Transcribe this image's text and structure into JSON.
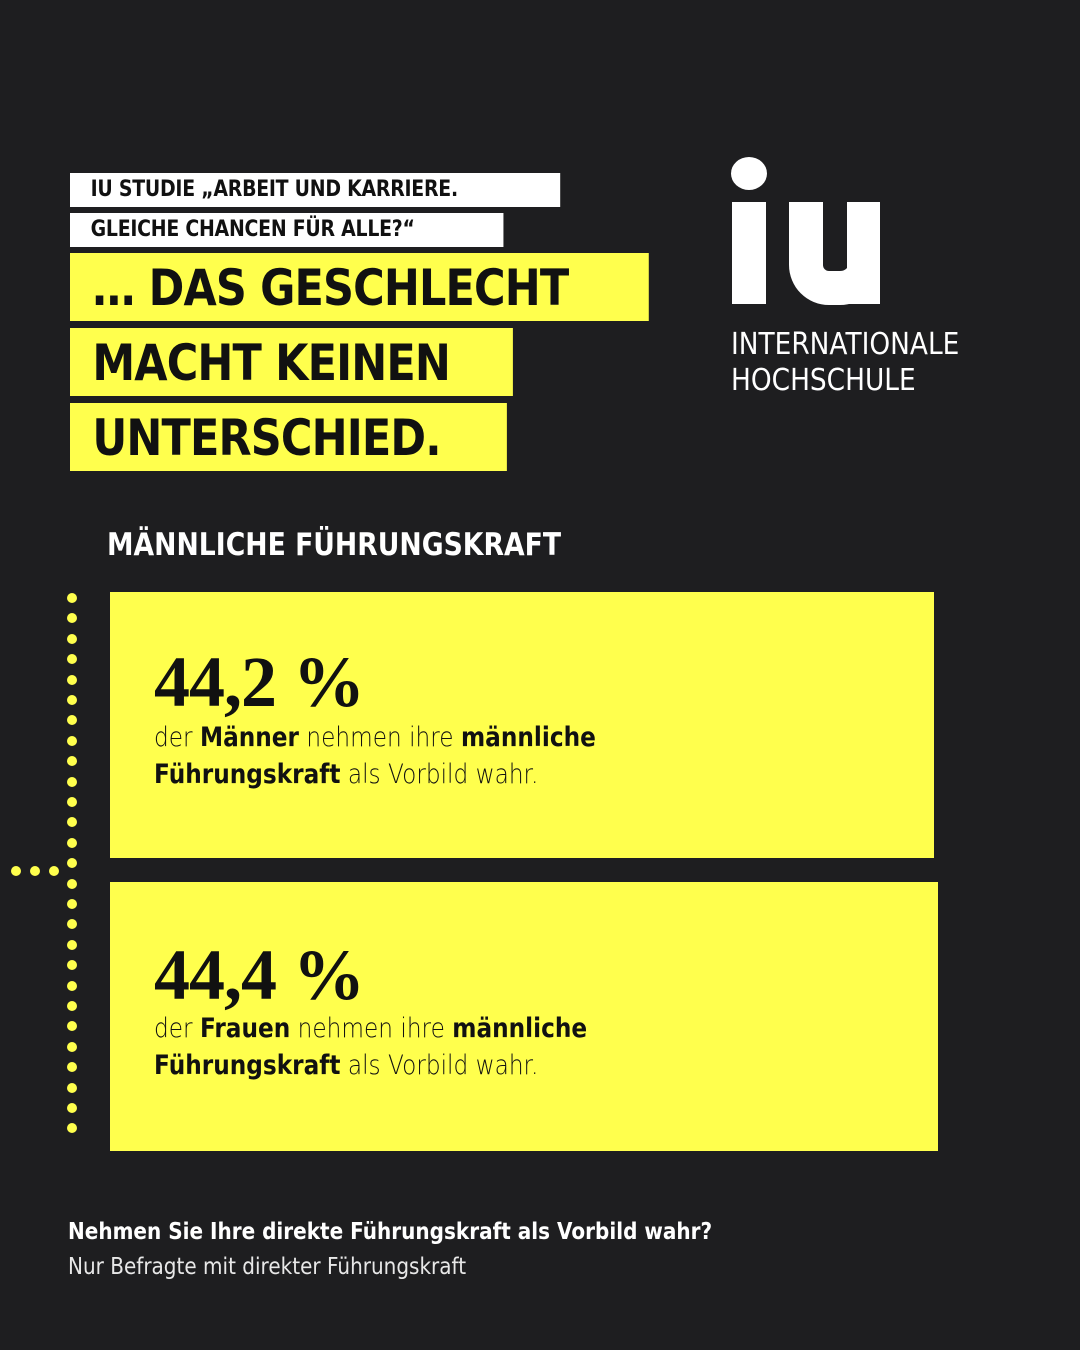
{
  "header": {
    "study_lines": [
      "IU STUDIE „ARBEIT UND KARRIERE.",
      "GLEICHE CHANCEN FÜR ALLE?“"
    ],
    "headline_lines": [
      "… DAS GESCHLECHT",
      "MACHT KEINEN",
      "UNTERSCHIED."
    ]
  },
  "logo": {
    "mark": "iu",
    "name_lines": [
      "INTERNATIONALE",
      "HOCHSCHULE"
    ]
  },
  "section": {
    "title": "MÄNNLICHE FÜHRUNGSKRAFT"
  },
  "stats": [
    {
      "value": "44,2 %",
      "desc": {
        "p1": "der ",
        "b1": "Männer",
        "p2": " nehmen ihre ",
        "b2": "männliche",
        "b3": "Führungskraft",
        "p3": " als Vorbild wahr."
      }
    },
    {
      "value": "44,4 %",
      "desc": {
        "p1": "der ",
        "b1": "Frauen",
        "p2": " nehmen ihre ",
        "b2": "männliche",
        "b3": "Führungskraft",
        "p3": " als Vorbild wahr."
      }
    }
  ],
  "footer": {
    "question": "Nehmen Sie Ihre direkte Führungskraft als Vorbild wahr?",
    "note": "Nur Befragte mit direkter Führungskraft"
  },
  "colors": {
    "background": "#1e1e20",
    "accent_yellow": "#ffff4d",
    "text_dark": "#111111",
    "text_light": "#ffffff"
  }
}
